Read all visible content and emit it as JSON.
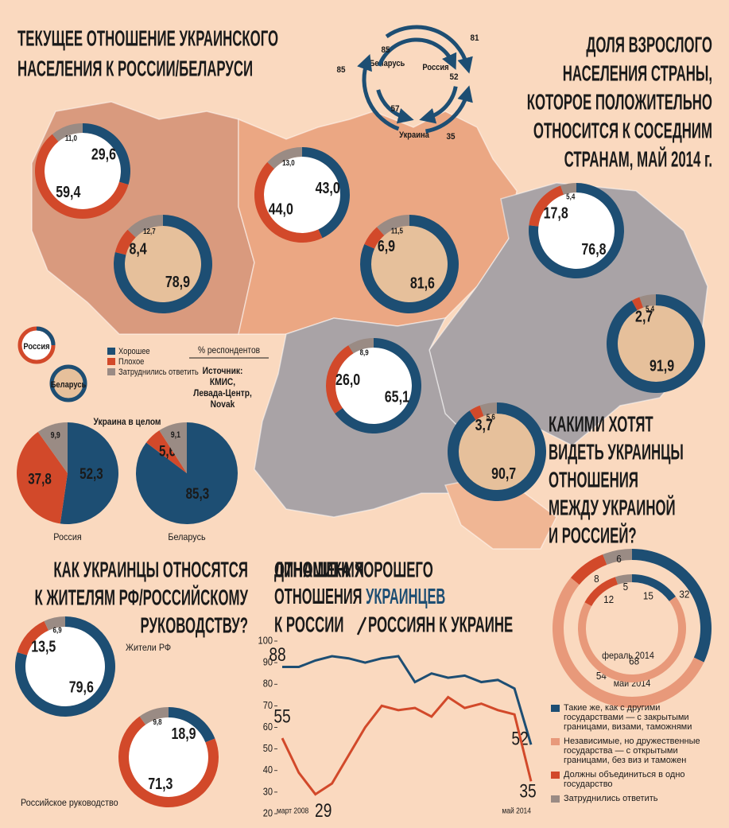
{
  "chart_data": [
    {
      "type": "donut",
      "title": [
        "ТЕКУЩЕЕ ОТНОШЕНИЕ УКРАИНСКОГО",
        "НАСЕЛЕНИЯ К РОССИИ/БЕЛАРУСИ"
      ],
      "name": "Россия",
      "note": "% респондентов",
      "source": [
        "Источник:",
        "КМИС,",
        "Левада-Центр,",
        "Novak"
      ],
      "categories": [
        null,
        null,
        null,
        null
      ],
      "series": [
        {
          "name": "Хорошее",
          "color": "#1d4e73",
          "values": [
            29.6,
            43.0,
            76.8,
            65.1
          ],
          "value_labels": [
            "29,6",
            "43,0",
            "76,8",
            "65,1"
          ]
        },
        {
          "name": "Плохое",
          "color": "#d2492a",
          "values": [
            59.4,
            44.0,
            17.8,
            26.0
          ],
          "value_labels": [
            "59,4",
            "44,0",
            "17,8",
            "26,0"
          ]
        },
        {
          "name": "Затруднились ответить",
          "color": "#9a8b84",
          "values": [
            11.0,
            13.0,
            5.4,
            8.9
          ],
          "value_labels": [
            "11,0",
            "13,0",
            "5,4",
            "8,9"
          ]
        }
      ]
    },
    {
      "type": "donut",
      "name": "Беларусь",
      "categories": [
        null,
        null,
        null,
        null
      ],
      "series": [
        {
          "color": "#1d4e73",
          "values": [
            78.9,
            81.6,
            91.9,
            90.7
          ],
          "value_labels": [
            "78,9",
            "81,6",
            "91,9",
            "90,7"
          ]
        },
        {
          "color": "#d2492a",
          "values": [
            8.4,
            6.9,
            2.7,
            3.7
          ],
          "value_labels": [
            "8,4",
            "6,9",
            "2,7",
            "3,7"
          ]
        },
        {
          "color": "#9a8b84",
          "values": [
            12.7,
            11.5,
            5.4,
            5.6
          ],
          "value_labels": [
            "12,7",
            "11,5",
            "5,4",
            "5,6"
          ]
        }
      ]
    },
    {
      "type": "pie",
      "title": "Украина в целом",
      "categories": [
        "Россия",
        "Беларусь"
      ],
      "series": [
        {
          "color": "#1d4e73",
          "values": [
            52.3,
            85.3
          ],
          "value_labels": [
            "52,3",
            "85,3"
          ]
        },
        {
          "color": "#d2492a",
          "values": [
            37.8,
            5.6
          ],
          "value_labels": [
            "37,8",
            "5,6"
          ]
        },
        {
          "color": "#9a8b84",
          "values": [
            9.9,
            9.1
          ],
          "value_labels": [
            "9,9",
            "9,1"
          ]
        }
      ]
    },
    {
      "type": "cycle",
      "title": [
        "ДОЛЯ ВЗРОСЛОГО",
        "НАСЕЛЕНИЯ СТРАНЫ,",
        "КОТОРОЕ ПОЛОЖИТЕЛЬНО",
        "ОТНОСИТСЯ К СОСЕДНИМ",
        "СТРАНАМ, МАЙ 2014 г."
      ],
      "nodes": [
        "Беларусь",
        "Россия",
        "Украина"
      ],
      "color": "#1d4e73",
      "links": [
        {
          "source": 0,
          "target": 1,
          "value": 85
        },
        {
          "source": 2,
          "target": 0,
          "value": 85
        },
        {
          "source": 1,
          "target": 0,
          "value": 81
        },
        {
          "source": 2,
          "target": 1,
          "value": 52
        },
        {
          "source": 0,
          "target": 2,
          "value": 57
        },
        {
          "source": 1,
          "target": 2,
          "value": 35
        }
      ]
    },
    {
      "type": "donut",
      "title": [
        "КАК УКРАИНЦЫ ОТНОСЯТСЯ",
        "К ЖИТЕЛЯМ РФ/РОССИЙСКОМУ",
        "РУКОВОДСТВУ?"
      ],
      "categories": [
        "Жители РФ",
        "Российское руководство"
      ],
      "series": [
        {
          "color": "#1d4e73",
          "values": [
            79.6,
            18.9
          ],
          "value_labels": [
            "79,6",
            "18,9"
          ]
        },
        {
          "color": "#d2492a",
          "values": [
            13.5,
            71.3
          ],
          "value_labels": [
            "13,5",
            "71,3"
          ]
        },
        {
          "color": "#9a8b84",
          "values": [
            6.9,
            9.8
          ],
          "value_labels": [
            "6,9",
            "9,8"
          ]
        }
      ]
    },
    {
      "type": "line",
      "title": [
        "ДИНАМИКА ХОРОШЕГО",
        "ОТНОШЕНИЯ"
      ],
      "categories": [
        "март 2008",
        null,
        null,
        null,
        null,
        null,
        null,
        null,
        null,
        null,
        null,
        null,
        null,
        null,
        null,
        "май 2014"
      ],
      "series": [
        {
          "name": [
            "УКРАИНЦЕВ",
            "К РОССИИ"
          ],
          "color": "#1d4e73",
          "values": [
            88,
            88,
            91,
            93,
            92,
            90,
            92,
            93,
            81,
            85,
            83,
            84,
            81,
            82,
            78,
            52
          ]
        },
        {
          "name": "РОССИЯН К УКРАИНЕ",
          "color": "#d2492a",
          "values": [
            55,
            39,
            29,
            34,
            47,
            60,
            70,
            68,
            69,
            65,
            74,
            69,
            71,
            68,
            66,
            35
          ]
        }
      ],
      "ylim": [
        20,
        100
      ],
      "yticks": [
        20,
        30,
        40,
        50,
        60,
        70,
        80,
        90,
        100
      ]
    },
    {
      "type": "nested-donut",
      "title": [
        "КАКИМИ ХОТЯТ",
        "ВИДЕТЬ УКРАИНЦЫ",
        "ОТНОШЕНИЯ",
        "МЕЖДУ УКРАИНОЙ",
        "И РОССИЕЙ?"
      ],
      "categories": [
        "май 2014",
        "фераль 2014"
      ],
      "series": [
        {
          "name": "Такие же, как с другими государствами — с закрытыми границами, визами, таможнями",
          "color": "#1d4e73",
          "values": [
            32,
            15
          ]
        },
        {
          "name": "Независимые, но дружественные государства — с открытыми границами, без виз и таможен",
          "color": "#e8997a",
          "values": [
            54,
            68
          ]
        },
        {
          "name": "Должны объединиться в одно государство",
          "color": "#d2492a",
          "values": [
            8,
            12
          ]
        },
        {
          "name": "Затруднились ответить",
          "color": "#9a8b84",
          "values": [
            6,
            5
          ]
        }
      ]
    }
  ]
}
